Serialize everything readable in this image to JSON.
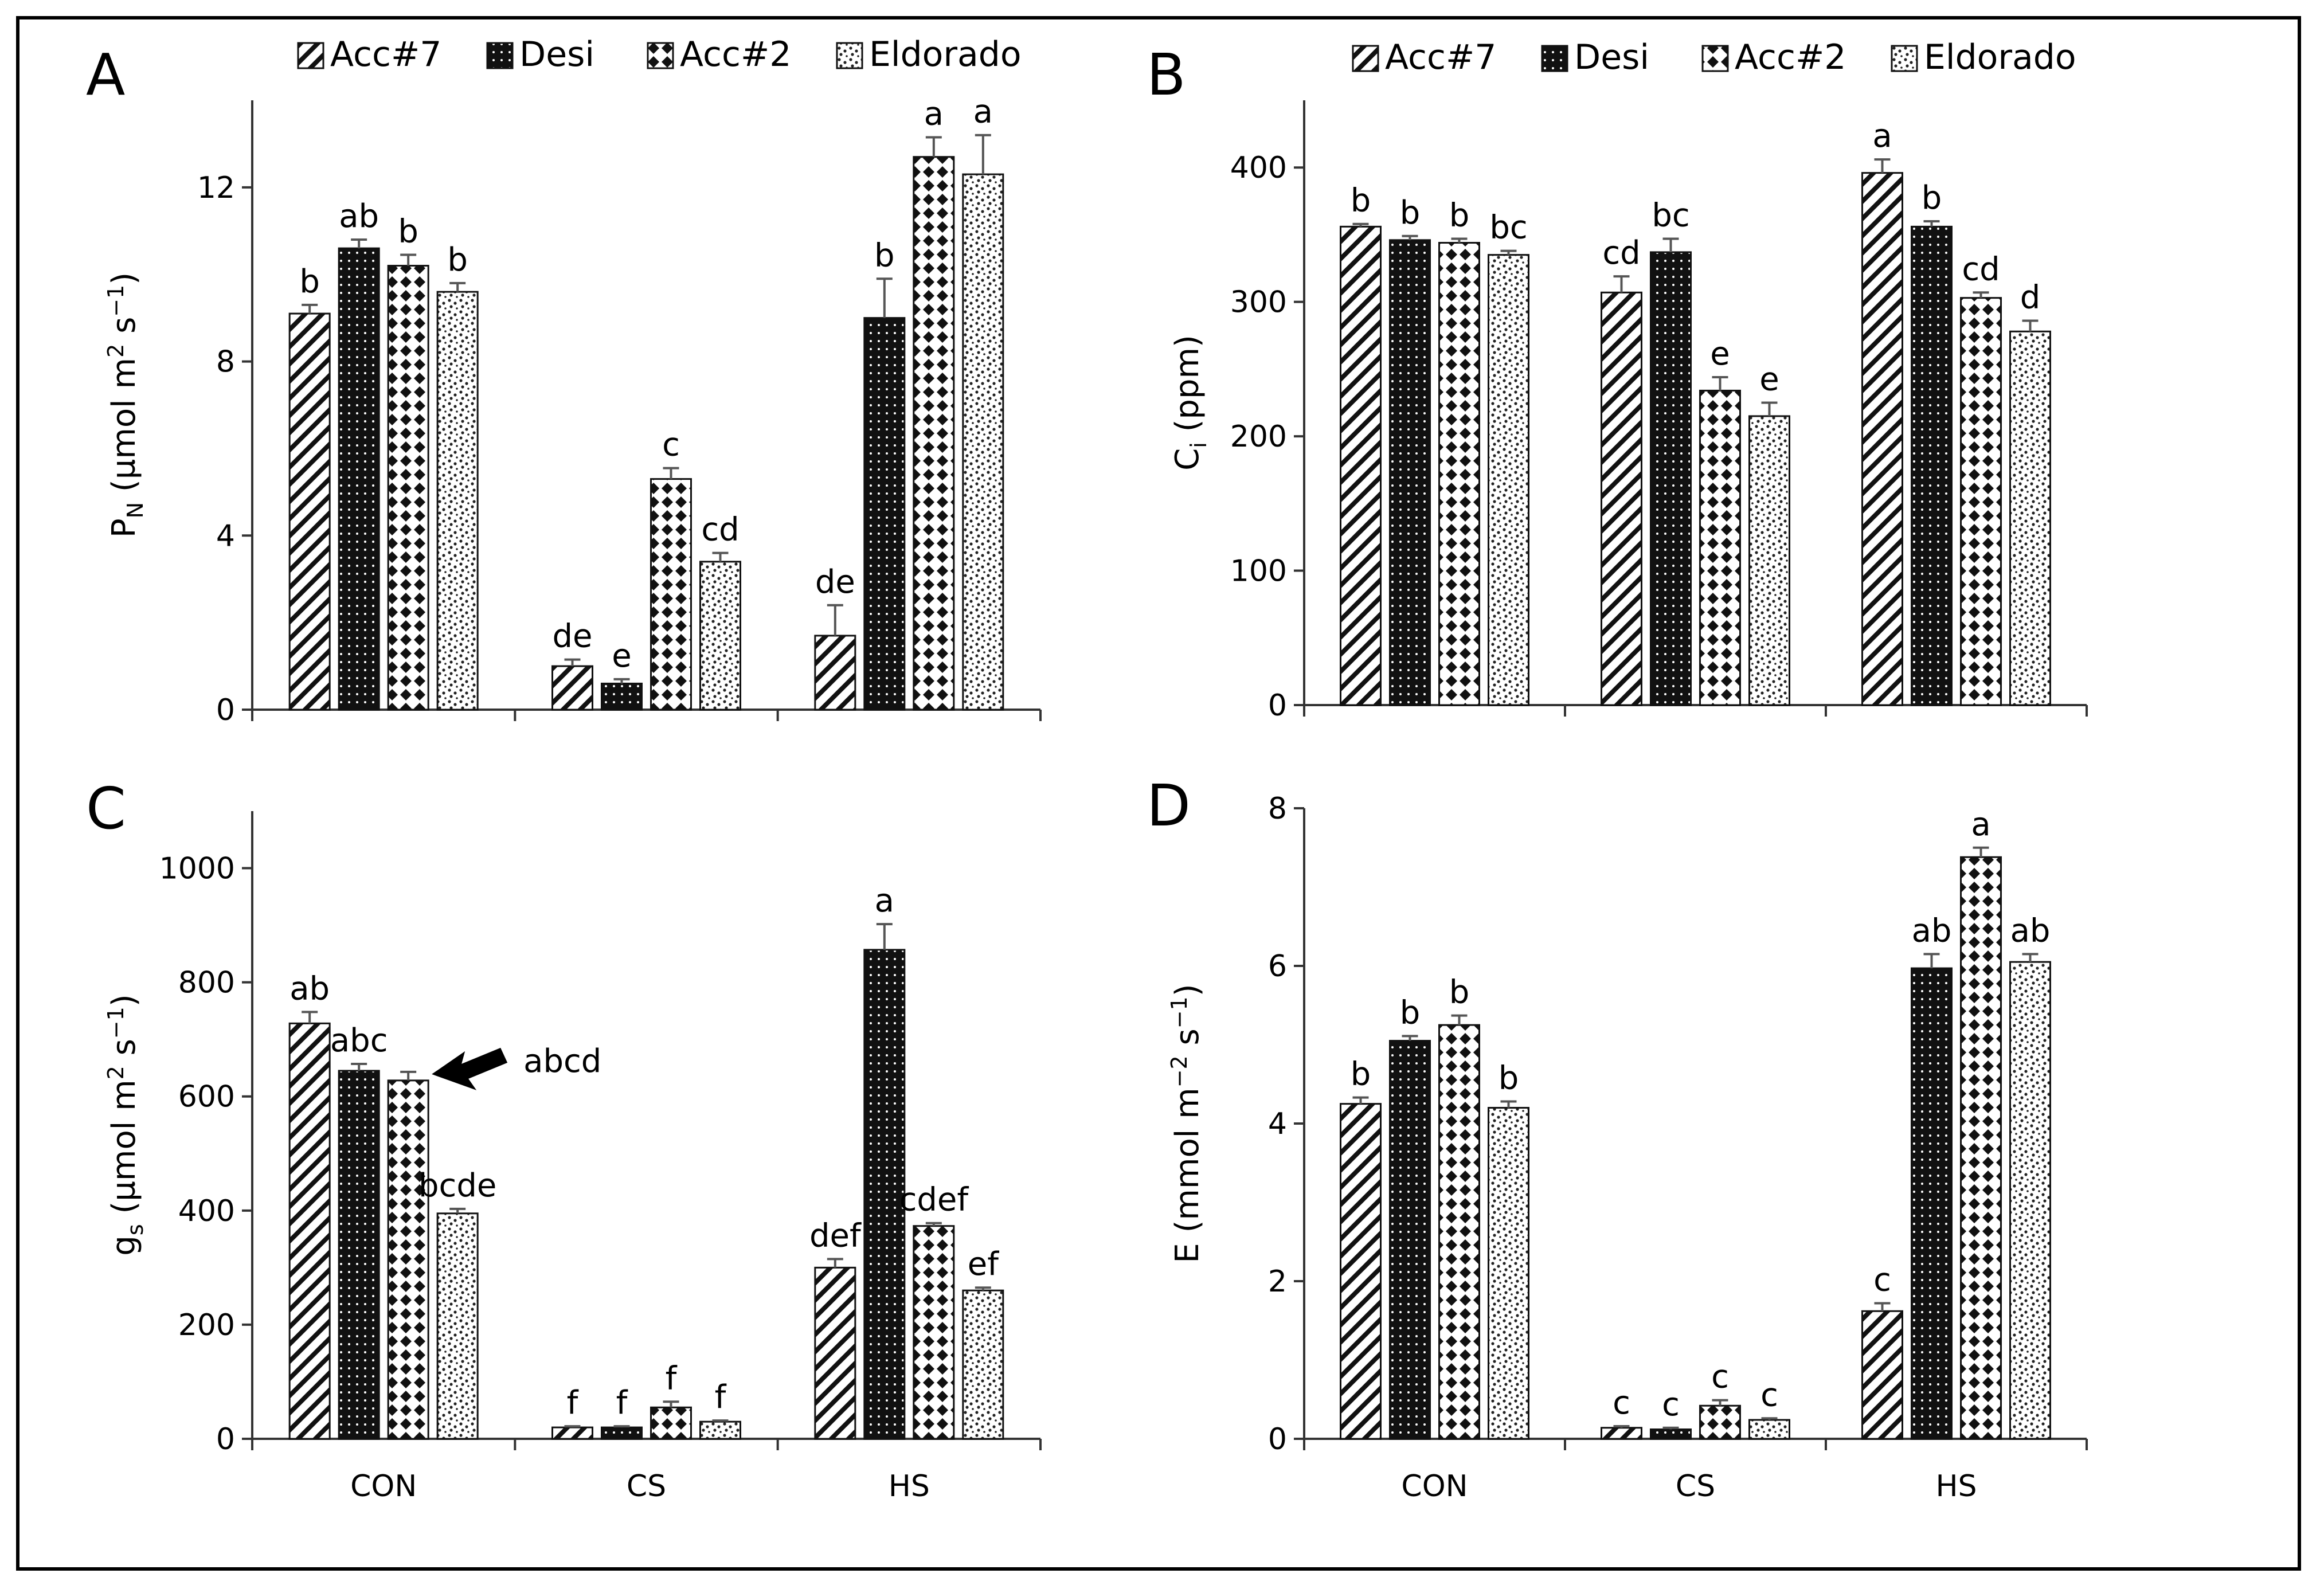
{
  "figure": {
    "legend_labels": [
      "Acc#7",
      "Desi",
      "Acc#2",
      "Eldorado"
    ],
    "categories": [
      "CON",
      "CS",
      "HS"
    ],
    "colors": {
      "frame": "#000000",
      "bar_dark": "#111111",
      "background": "#ffffff"
    }
  },
  "chart_data": [
    {
      "panel": "A",
      "type": "bar",
      "ylabel": {
        "main": "P",
        "sub": "N",
        "rest": " (µmol m",
        "sup1": "2",
        "mid": " s",
        "sup2": "−1",
        "end": ")"
      },
      "ylim": [
        0,
        14
      ],
      "yticks": [
        0,
        4,
        8,
        12
      ],
      "categories": [
        "CON",
        "CS",
        "HS"
      ],
      "series": [
        {
          "name": "Acc#7",
          "values": [
            9.1,
            1.0,
            1.7
          ],
          "errors": [
            0.2,
            0.15,
            0.7
          ],
          "letters": [
            "b",
            "de",
            "de"
          ]
        },
        {
          "name": "Desi",
          "values": [
            10.6,
            0.6,
            9.0
          ],
          "errors": [
            0.2,
            0.1,
            0.9
          ],
          "letters": [
            "ab",
            "e",
            "b"
          ]
        },
        {
          "name": "Acc#2",
          "values": [
            10.2,
            5.3,
            12.7
          ],
          "errors": [
            0.25,
            0.25,
            0.45
          ],
          "letters": [
            "b",
            "c",
            "a"
          ]
        },
        {
          "name": "Eldorado",
          "values": [
            9.6,
            3.4,
            12.3
          ],
          "errors": [
            0.2,
            0.2,
            0.9
          ],
          "letters": [
            "b",
            "cd",
            "a"
          ]
        }
      ],
      "show_category_labels": false
    },
    {
      "panel": "B",
      "type": "bar",
      "ylabel": {
        "main": "C",
        "sub": "i",
        "rest": " (ppm)",
        "sup1": "",
        "mid": "",
        "sup2": "",
        "end": ""
      },
      "ylim": [
        0,
        450
      ],
      "yticks": [
        0,
        100,
        200,
        300,
        400
      ],
      "categories": [
        "CON",
        "CS",
        "HS"
      ],
      "series": [
        {
          "name": "Acc#7",
          "values": [
            356,
            307,
            396
          ],
          "errors": [
            2,
            12,
            10
          ],
          "letters": [
            "b",
            "cd",
            "a"
          ]
        },
        {
          "name": "Desi",
          "values": [
            346,
            337,
            356
          ],
          "errors": [
            3,
            10,
            4
          ],
          "letters": [
            "b",
            "bc",
            "b"
          ]
        },
        {
          "name": "Acc#2",
          "values": [
            344,
            234,
            303
          ],
          "errors": [
            3,
            10,
            4
          ],
          "letters": [
            "b",
            "e",
            "cd"
          ]
        },
        {
          "name": "Eldorado",
          "values": [
            335,
            215,
            278
          ],
          "errors": [
            3,
            10,
            8
          ],
          "letters": [
            "bc",
            "e",
            "d"
          ]
        }
      ],
      "show_category_labels": false
    },
    {
      "panel": "C",
      "type": "bar",
      "ylabel": {
        "main": "g",
        "sub": "s",
        "rest": " (µmol m",
        "sup1": "2",
        "mid": " s",
        "sup2": "−1",
        "end": ")"
      },
      "ylim": [
        0,
        1100
      ],
      "yticks": [
        0,
        200,
        400,
        600,
        800,
        1000
      ],
      "categories": [
        "CON",
        "CS",
        "HS"
      ],
      "series": [
        {
          "name": "Acc#7",
          "values": [
            728,
            20,
            300
          ],
          "errors": [
            20,
            2,
            15
          ],
          "letters": [
            "ab",
            "f",
            "def"
          ]
        },
        {
          "name": "Desi",
          "values": [
            645,
            20,
            857
          ],
          "errors": [
            12,
            2,
            45
          ],
          "letters": [
            "abc",
            "f",
            "a"
          ]
        },
        {
          "name": "Acc#2",
          "values": [
            628,
            55,
            373
          ],
          "errors": [
            15,
            10,
            5
          ],
          "letters": [
            "",
            "f",
            "cdef"
          ]
        },
        {
          "name": "Eldorado",
          "values": [
            395,
            30,
            260
          ],
          "errors": [
            8,
            2,
            5
          ],
          "letters": [
            "bcde",
            "f",
            "ef"
          ]
        }
      ],
      "annotation": {
        "text": "abcd",
        "arrow_to": {
          "series": "Acc#2",
          "category": "CON"
        }
      },
      "show_category_labels": true
    },
    {
      "panel": "D",
      "type": "bar",
      "ylabel": {
        "main": "E",
        "sub": "",
        "rest": " (mmol m",
        "sup1": "−2",
        "mid": " s",
        "sup2": "−1",
        "end": ")"
      },
      "ylim": [
        0,
        8
      ],
      "yticks": [
        0,
        2,
        4,
        6,
        8
      ],
      "categories": [
        "CON",
        "CS",
        "HS"
      ],
      "series": [
        {
          "name": "Acc#7",
          "values": [
            4.25,
            0.14,
            1.62
          ],
          "errors": [
            0.08,
            0.02,
            0.1
          ],
          "letters": [
            "b",
            "c",
            "c"
          ]
        },
        {
          "name": "Desi",
          "values": [
            5.05,
            0.12,
            5.97
          ],
          "errors": [
            0.06,
            0.02,
            0.18
          ],
          "letters": [
            "b",
            "c",
            "ab"
          ]
        },
        {
          "name": "Acc#2",
          "values": [
            5.25,
            0.42,
            7.38
          ],
          "errors": [
            0.12,
            0.07,
            0.12
          ],
          "letters": [
            "b",
            "c",
            "a"
          ]
        },
        {
          "name": "Eldorado",
          "values": [
            4.2,
            0.24,
            6.05
          ],
          "errors": [
            0.08,
            0.02,
            0.1
          ],
          "letters": [
            "b",
            "c",
            "ab"
          ]
        }
      ],
      "show_category_labels": true
    }
  ]
}
